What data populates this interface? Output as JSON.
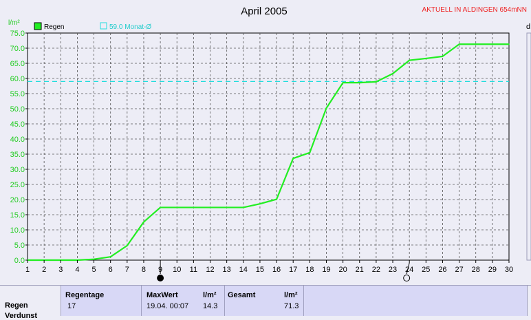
{
  "chart_data": {
    "type": "line",
    "title": "April 2005",
    "station_label": "AKTUELL IN ALDINGEN 654mNN",
    "ylabel": "l/m²",
    "right_axis_label": "d",
    "ylim": [
      0,
      75
    ],
    "yticks": [
      "0.0",
      "5.0",
      "10.0",
      "15.0",
      "20.0",
      "25.0",
      "30.0",
      "35.0",
      "40.0",
      "45.0",
      "50.0",
      "55.0",
      "60.0",
      "65.0",
      "70.0",
      "75.0"
    ],
    "xlim": [
      1,
      30
    ],
    "xticks": [
      "1",
      "2",
      "3",
      "4",
      "5",
      "6",
      "7",
      "8",
      "9",
      "10",
      "11",
      "12",
      "13",
      "14",
      "15",
      "16",
      "17",
      "18",
      "19",
      "20",
      "21",
      "22",
      "23",
      "24",
      "25",
      "26",
      "27",
      "28",
      "29",
      "30"
    ],
    "grid": true,
    "legend_placement": "top-left",
    "series": [
      {
        "name": "Regen",
        "color": "#22ee22",
        "x": [
          1,
          2,
          3,
          4,
          5,
          6,
          7,
          8,
          9,
          10,
          11,
          12,
          13,
          14,
          15,
          16,
          17,
          18,
          19,
          20,
          21,
          22,
          23,
          24,
          25,
          26,
          27,
          28,
          29,
          30
        ],
        "values": [
          0,
          0,
          0,
          0,
          0.3,
          1.1,
          4.8,
          12.6,
          17.4,
          17.4,
          17.4,
          17.4,
          17.4,
          17.4,
          18.6,
          20.1,
          33.6,
          35.5,
          50.2,
          58.6,
          58.6,
          58.9,
          61.6,
          66.0,
          66.6,
          67.3,
          71.3,
          71.3,
          71.3,
          71.3
        ]
      }
    ],
    "reference_line": {
      "name": "59.0 Monat-Ø",
      "value": 59.0,
      "color": "#22dddd"
    },
    "moon_markers": [
      {
        "day": 9,
        "phase": "new-moon"
      },
      {
        "day": 24,
        "phase": "full-moon"
      }
    ]
  },
  "panel": {
    "row_label_regen": "Regen",
    "row_label_cut": "Verdunst",
    "regentage_header": "Regentage",
    "regentage_value": "17",
    "maxwert_header": "MaxWert",
    "maxwert_unit_header": "l/m²",
    "maxwert_time": "19.04.  00:07",
    "maxwert_value": "14.3",
    "gesamt_header": "Gesamt",
    "gesamt_unit_header": "l/m²",
    "gesamt_value": "71.3"
  }
}
